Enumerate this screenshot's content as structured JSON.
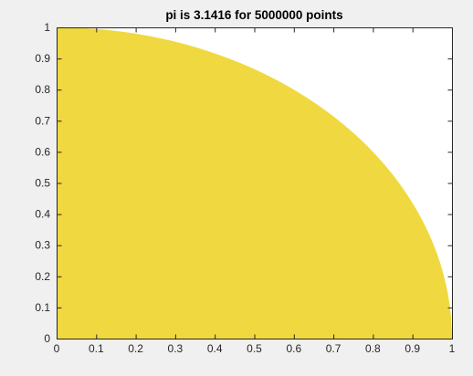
{
  "window": {
    "figure_background": "#f0f0f0"
  },
  "chart_data": {
    "type": "scatter",
    "title": "pi is 3.1416 for 5000000 points",
    "xlabel": "",
    "ylabel": "",
    "xlim": [
      0,
      1
    ],
    "ylim": [
      0,
      1
    ],
    "xticks": [
      0,
      0.1,
      0.2,
      0.3,
      0.4,
      0.5,
      0.6,
      0.7,
      0.8,
      0.9,
      1
    ],
    "xtick_labels": [
      "0",
      "0.1",
      "0.2",
      "0.3",
      "0.4",
      "0.5",
      "0.6",
      "0.7",
      "0.8",
      "0.9",
      "1"
    ],
    "yticks": [
      0,
      0.1,
      0.2,
      0.3,
      0.4,
      0.5,
      0.6,
      0.7,
      0.8,
      0.9,
      1
    ],
    "ytick_labels": [
      "0",
      "0.1",
      "0.2",
      "0.3",
      "0.4",
      "0.5",
      "0.6",
      "0.7",
      "0.8",
      "0.9",
      "1"
    ],
    "grid": false,
    "legend": false,
    "series": [
      {
        "region": "points inside unit circle (x^2 + y^2 <= 1), quarter-disc from origin",
        "radius": 1,
        "points": 5000000,
        "color": "#f0d840"
      }
    ],
    "axes_color": "#262626",
    "plot_background": "#ffffff"
  }
}
